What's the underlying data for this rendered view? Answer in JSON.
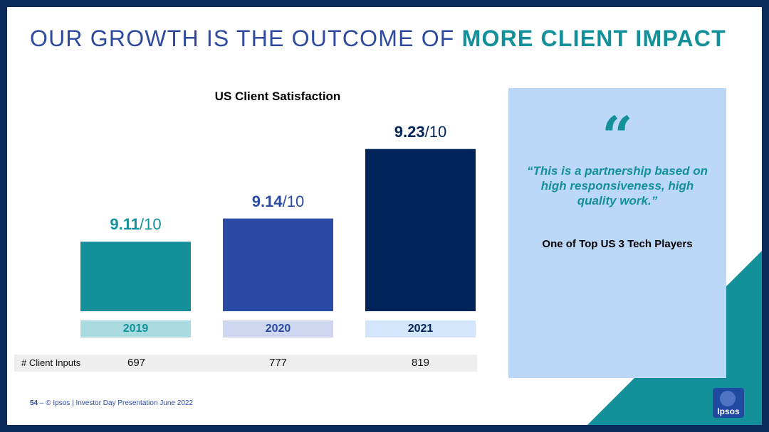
{
  "header": {
    "title_main": "OUR GROWTH IS THE OUTCOME OF",
    "title_accent": "MORE CLIENT IMPACT"
  },
  "chart_data": {
    "type": "bar",
    "title": "US Client Satisfaction",
    "categories": [
      "2019",
      "2020",
      "2021"
    ],
    "values": [
      9.11,
      9.14,
      9.23
    ],
    "value_labels": [
      "9.11",
      "9.14",
      "9.23"
    ],
    "value_suffix": "/10",
    "ylim": [
      9.02,
      9.25
    ],
    "grid": false,
    "colors": [
      "#13909a",
      "#2b4aa3",
      "#00245a"
    ],
    "label_colors": [
      "#13909a",
      "#2b4aa3",
      "#00245a"
    ],
    "year_bg_colors": [
      "#a9dbe0",
      "#cfd7f0",
      "#d3e6fb"
    ],
    "year_text_colors": [
      "#13909a",
      "#2b4aa3",
      "#00245a"
    ]
  },
  "client_inputs": {
    "label": "# Client Inputs",
    "values": [
      "697",
      "777",
      "819"
    ]
  },
  "quote": {
    "mark": "“",
    "text": "“This is a partnership based on high responsiveness, high quality work.”",
    "source": "One of Top US 3 Tech Players"
  },
  "footer": {
    "page_number": "54",
    "separator": " – ",
    "text": "© Ipsos | Investor Day Presentation June 2022"
  },
  "logo": {
    "text": "Ipsos"
  },
  "colors": {
    "frame": "#0b2a5c",
    "accent_teal": "#13909a",
    "title_blue": "#2e4a9e",
    "quote_bg": "#bcd8f8"
  }
}
